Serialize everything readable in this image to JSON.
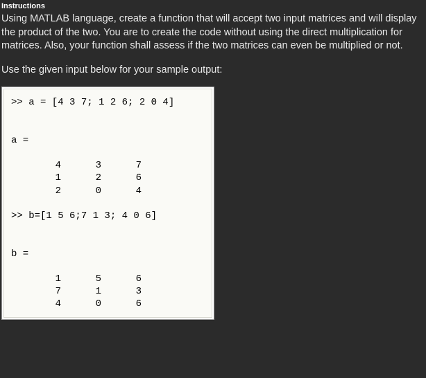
{
  "header": {
    "title": "Instructions"
  },
  "instructions": {
    "p1": "Using MATLAB language, create a function that will accept two input matrices and will display the product of the two. You are to create the code without using the direct multiplication for matrices. Also, your function shall assess if the two matrices can even be multiplied or not.",
    "p2": "Use the given input below for your sample output:"
  },
  "matlab": {
    "line_a_input": ">> a = [4 3 7; 1 2 6; 2 0 4]",
    "a_label": "a =",
    "a_rows": [
      [
        "4",
        "3",
        "7"
      ],
      [
        "1",
        "2",
        "6"
      ],
      [
        "2",
        "0",
        "4"
      ]
    ],
    "line_b_input": ">> b=[1 5 6;7 1 3; 4 0 6]",
    "b_label": "b =",
    "b_rows": [
      [
        "1",
        "5",
        "6"
      ],
      [
        "7",
        "1",
        "3"
      ],
      [
        "4",
        "0",
        "6"
      ]
    ]
  },
  "colors": {
    "page_bg": "#2b2b2b",
    "text_light": "#e8e8e8",
    "matlab_bg": "#fafaf6",
    "matlab_border": "#d8d8d0",
    "matlab_text": "#000000"
  }
}
